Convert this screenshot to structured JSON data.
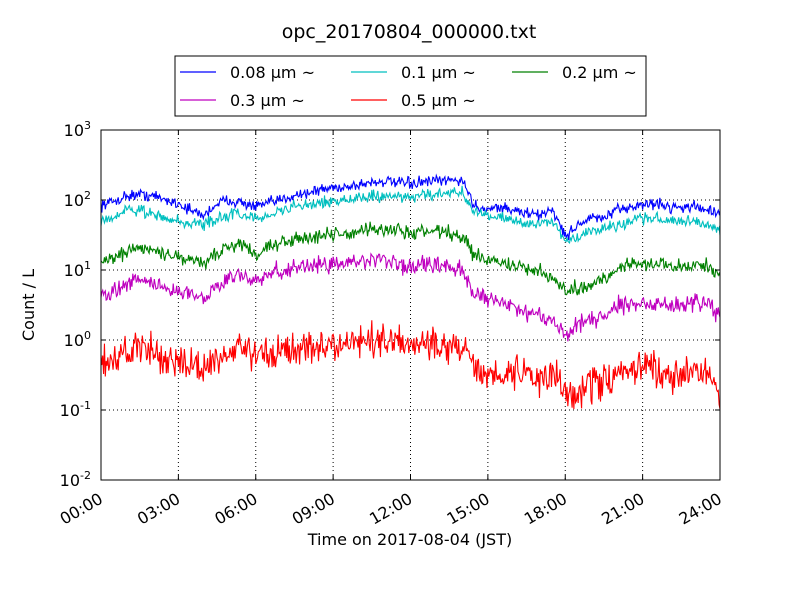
{
  "chart_data": {
    "type": "line",
    "title": "opc_20170804_000000.txt",
    "xlabel": "Time on 2017-08-04 (JST)",
    "ylabel": "Count / L",
    "xlim": [
      0,
      24
    ],
    "ylim": [
      0.01,
      1000
    ],
    "yscale": "log",
    "grid": true,
    "legend_position": "top-center",
    "x_ticks": [
      {
        "value": 0,
        "label": "00:00"
      },
      {
        "value": 3,
        "label": "03:00"
      },
      {
        "value": 6,
        "label": "06:00"
      },
      {
        "value": 9,
        "label": "09:00"
      },
      {
        "value": 12,
        "label": "12:00"
      },
      {
        "value": 15,
        "label": "15:00"
      },
      {
        "value": 18,
        "label": "18:00"
      },
      {
        "value": 21,
        "label": "21:00"
      },
      {
        "value": 24,
        "label": "24:00"
      }
    ],
    "y_ticks": [
      {
        "value": 0.01,
        "base": "10",
        "exp": "-2"
      },
      {
        "value": 0.1,
        "base": "10",
        "exp": "-1"
      },
      {
        "value": 1,
        "base": "10",
        "exp": "0"
      },
      {
        "value": 10,
        "base": "10",
        "exp": "1"
      },
      {
        "value": 100,
        "base": "10",
        "exp": "2"
      },
      {
        "value": 1000,
        "base": "10",
        "exp": "3"
      }
    ],
    "x": [
      0,
      0.5,
      1,
      1.5,
      2,
      2.5,
      3,
      3.5,
      4,
      4.5,
      5,
      5.5,
      6,
      6.5,
      7,
      7.5,
      8,
      8.5,
      9,
      9.5,
      10,
      10.5,
      11,
      11.5,
      12,
      12.5,
      13,
      13.5,
      14,
      14.5,
      15,
      15.5,
      16,
      16.5,
      17,
      17.5,
      18,
      18.5,
      19,
      19.5,
      20,
      20.5,
      21,
      21.5,
      22,
      22.5,
      23,
      23.5,
      24
    ],
    "series": [
      {
        "name": "0.08 μm ~",
        "color": "#0000ff",
        "noise": 0.04,
        "values": [
          85,
          95,
          115,
          120,
          115,
          100,
          90,
          70,
          60,
          90,
          100,
          90,
          80,
          90,
          100,
          120,
          125,
          140,
          150,
          155,
          165,
          180,
          185,
          175,
          170,
          180,
          185,
          190,
          195,
          80,
          75,
          80,
          70,
          65,
          60,
          75,
          30,
          45,
          55,
          55,
          70,
          80,
          85,
          90,
          80,
          80,
          80,
          75,
          60
        ]
      },
      {
        "name": "0.1 μm ~",
        "color": "#00bfbf",
        "noise": 0.04,
        "values": [
          50,
          60,
          70,
          70,
          65,
          55,
          50,
          45,
          45,
          55,
          65,
          60,
          55,
          60,
          70,
          80,
          85,
          90,
          95,
          100,
          105,
          110,
          115,
          115,
          110,
          115,
          120,
          125,
          130,
          65,
          60,
          55,
          50,
          45,
          45,
          50,
          25,
          30,
          35,
          38,
          45,
          50,
          55,
          55,
          50,
          50,
          50,
          45,
          38
        ]
      },
      {
        "name": "0.2 μm ~",
        "color": "#008000",
        "noise": 0.05,
        "values": [
          14,
          15,
          18,
          20,
          19,
          17,
          15,
          14,
          12,
          17,
          22,
          22,
          18,
          22,
          25,
          28,
          30,
          32,
          32,
          33,
          35,
          38,
          38,
          36,
          33,
          36,
          35,
          33,
          30,
          16,
          14,
          13,
          11,
          10,
          9.5,
          8,
          5,
          5.5,
          6.5,
          7.5,
          10,
          12,
          13,
          13,
          11,
          11,
          12,
          12,
          8
        ]
      },
      {
        "name": "0.3 μm ~",
        "color": "#bf00bf",
        "noise": 0.06,
        "values": [
          4.5,
          5,
          6,
          7,
          6.5,
          5.5,
          5,
          4.5,
          4,
          6,
          8,
          8.5,
          7,
          8.5,
          10,
          11,
          11.5,
          12,
          12,
          12.5,
          13,
          14,
          13,
          12,
          11,
          12,
          12,
          11,
          10,
          4.5,
          4,
          3.5,
          3,
          2.5,
          2.2,
          2,
          1.2,
          1.6,
          2,
          2.2,
          3,
          3.2,
          3.5,
          3.3,
          3,
          3,
          3.5,
          3.5,
          2
        ]
      },
      {
        "name": "0.5 μm ~",
        "color": "#ff0000",
        "noise": 0.12,
        "values": [
          0.5,
          0.55,
          0.7,
          0.75,
          0.65,
          0.55,
          0.5,
          0.45,
          0.4,
          0.55,
          0.6,
          0.7,
          0.6,
          0.65,
          0.7,
          0.75,
          0.8,
          0.8,
          0.8,
          0.85,
          0.9,
          1,
          1,
          0.9,
          0.85,
          0.9,
          0.85,
          0.8,
          0.75,
          0.4,
          0.3,
          0.3,
          0.35,
          0.3,
          0.3,
          0.3,
          0.2,
          0.2,
          0.22,
          0.25,
          0.3,
          0.35,
          0.4,
          0.35,
          0.3,
          0.3,
          0.35,
          0.35,
          0.15
        ]
      }
    ]
  }
}
